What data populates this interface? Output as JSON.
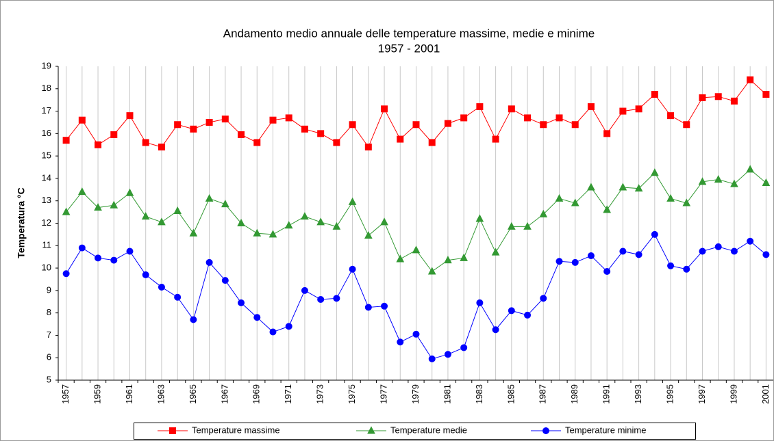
{
  "chart_data": {
    "type": "line",
    "title": "Andamento medio annuale delle temperature massime, medie e minime",
    "subtitle": "1957 - 2001",
    "y_label": "Temperatura °C",
    "categories": [
      "1957",
      null,
      "1959",
      null,
      "1961",
      null,
      "1963",
      null,
      "1965",
      null,
      "1967",
      null,
      "1969",
      null,
      "1971",
      null,
      "1973",
      null,
      "1975",
      null,
      "1977",
      null,
      "1979",
      null,
      "1981",
      null,
      "1983",
      null,
      "1985",
      null,
      "1987",
      null,
      "1989",
      null,
      "1991",
      null,
      "1993",
      null,
      "1995",
      null,
      "1997",
      null,
      "1999",
      null,
      "2001"
    ],
    "series": [
      {
        "name": "Temperature massime",
        "color": "#ff0000",
        "marker": "square",
        "values": [
          15.7,
          16.6,
          15.5,
          15.95,
          16.8,
          15.6,
          15.4,
          16.4,
          16.2,
          16.5,
          16.65,
          15.95,
          15.6,
          16.6,
          16.7,
          16.2,
          16.0,
          15.6,
          16.4,
          15.4,
          17.1,
          15.75,
          16.4,
          15.6,
          16.45,
          16.7,
          17.2,
          15.75,
          17.1,
          16.7,
          16.4,
          16.7,
          16.4,
          17.2,
          16.0,
          17.0,
          17.1,
          17.75,
          16.8,
          16.4,
          17.6,
          17.65,
          17.45,
          18.4,
          17.75
        ]
      },
      {
        "name": "Temperature medie",
        "color": "#339933",
        "marker": "triangle",
        "values": [
          12.5,
          13.4,
          12.7,
          12.8,
          13.35,
          12.3,
          12.05,
          12.55,
          11.55,
          13.1,
          12.85,
          12.0,
          11.55,
          11.5,
          11.9,
          12.3,
          12.05,
          11.85,
          12.95,
          11.45,
          12.05,
          10.4,
          10.8,
          9.85,
          10.35,
          10.45,
          12.2,
          10.7,
          11.85,
          11.85,
          12.4,
          13.1,
          12.9,
          13.6,
          12.6,
          13.6,
          13.55,
          14.25,
          13.1,
          12.9,
          13.85,
          13.95,
          13.75,
          14.4,
          13.8
        ]
      },
      {
        "name": "Temperature minime",
        "color": "#0000ff",
        "marker": "circle",
        "values": [
          9.75,
          10.9,
          10.45,
          10.35,
          10.75,
          9.7,
          9.15,
          8.7,
          7.7,
          10.25,
          9.45,
          8.45,
          7.8,
          7.15,
          7.4,
          9.0,
          8.6,
          8.65,
          9.95,
          8.25,
          8.3,
          6.7,
          7.05,
          5.95,
          6.15,
          6.45,
          8.45,
          7.25,
          8.1,
          7.9,
          8.65,
          10.3,
          10.25,
          10.55,
          9.85,
          10.75,
          10.6,
          11.5,
          10.1,
          9.95,
          10.75,
          10.95,
          10.75,
          11.2,
          10.6
        ]
      }
    ],
    "ylim": [
      5,
      19
    ],
    "yticks": [
      5,
      6,
      7,
      8,
      9,
      10,
      11,
      12,
      13,
      14,
      15,
      16,
      17,
      18,
      19
    ],
    "grid": "x",
    "legend": "bottom"
  }
}
